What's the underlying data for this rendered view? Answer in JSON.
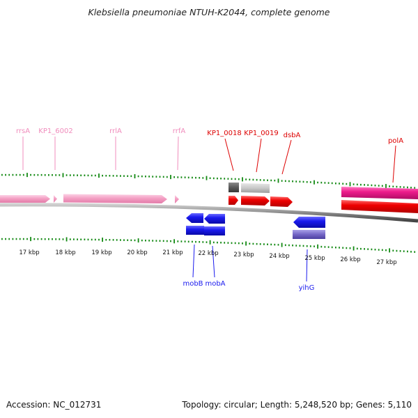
{
  "title": "Klebsiella pneumoniae NTUH-K2044, complete genome",
  "footer": {
    "accession": "Accession: NC_012731",
    "summary": "Topology: circular; Length: 5,248,520 bp; Genes: 5,110"
  },
  "colors": {
    "rrna": "#f4a0c4",
    "rrna_label": "#f08cbc",
    "forward_cds": "#ee0000",
    "reverse_cds": "#1a1aee",
    "pseudo_light": "#c8c8c8",
    "pseudo_dark": "#5a5a5a",
    "yihG_shadow": "#7466c6",
    "polA_magenta": "#ee1c8c",
    "tick_green": "#118811",
    "backbone": "#888888"
  },
  "scale": {
    "unit": "kbp",
    "labels": [
      "17 kbp",
      "18 kbp",
      "19 kbp",
      "20 kbp",
      "21 kbp",
      "22 kbp",
      "23 kbp",
      "24 kbp",
      "25 kbp",
      "26 kbp",
      "27 kbp"
    ]
  },
  "genes_top": [
    {
      "name": "rrsA",
      "strand": "+",
      "type": "rRNA"
    },
    {
      "name": "KP1_6002",
      "strand": "+",
      "type": "rRNA"
    },
    {
      "name": "rrlA",
      "strand": "+",
      "type": "rRNA"
    },
    {
      "name": "rrfA",
      "strand": "+",
      "type": "rRNA"
    },
    {
      "name": "KP1_0018",
      "strand": "+",
      "type": "CDS"
    },
    {
      "name": "KP1_0019",
      "strand": "+",
      "type": "CDS"
    },
    {
      "name": "dsbA",
      "strand": "+",
      "type": "CDS"
    },
    {
      "name": "polA",
      "strand": "+",
      "type": "CDS"
    }
  ],
  "genes_bottom": [
    {
      "name": "mobB",
      "strand": "-",
      "type": "CDS"
    },
    {
      "name": "mobA",
      "strand": "-",
      "type": "CDS"
    },
    {
      "name": "yihG",
      "strand": "-",
      "type": "CDS"
    }
  ]
}
